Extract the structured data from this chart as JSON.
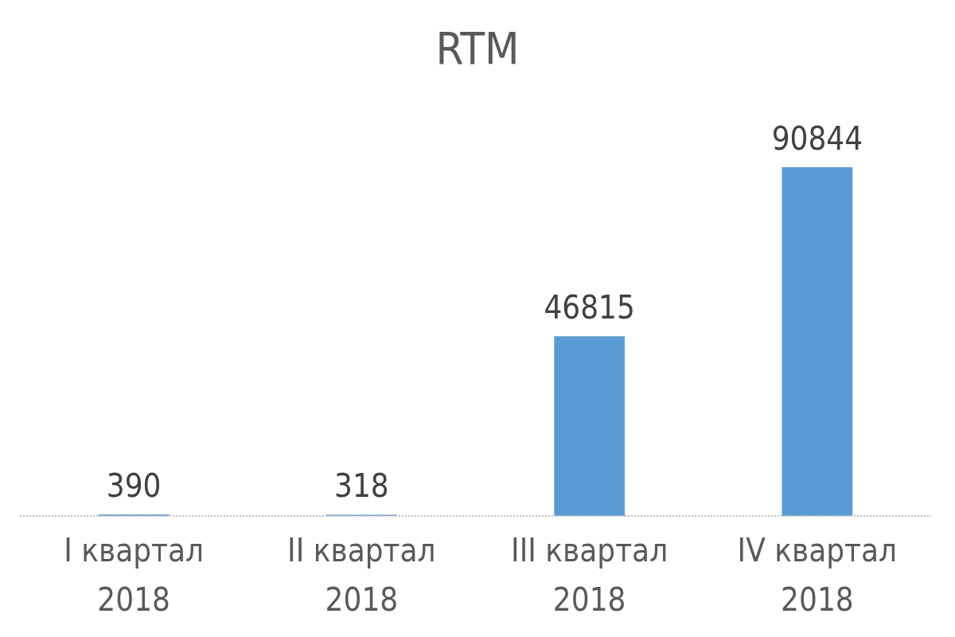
{
  "chart_data": {
    "type": "bar",
    "title": "RTM",
    "categories": [
      "I квартал 2018",
      "II квартал 2018",
      "III квартал 2018",
      "IV квартал 2018"
    ],
    "values": [
      390,
      318,
      46815,
      90844
    ],
    "color": "#5b9bd5",
    "data_labels": true
  }
}
